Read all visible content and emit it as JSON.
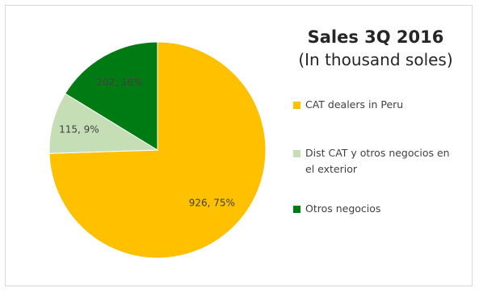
{
  "chart_data": {
    "type": "pie",
    "title": "Sales 3Q 2016",
    "subtitle": "(In thousand soles)",
    "legend_position": "right",
    "slices": [
      {
        "name": "CAT dealers in Peru",
        "value": 926,
        "percent": 75,
        "label": "926, 75%",
        "color": "#FFC000"
      },
      {
        "name": "Dist CAT y otros negocios en el exterior",
        "value": 115,
        "percent": 9,
        "label": "115, 9%",
        "color": "#C5DEB5"
      },
      {
        "name": "Otros negocios",
        "value": 202,
        "percent": 16,
        "label": "202, 16%",
        "color": "#007A12"
      }
    ]
  }
}
